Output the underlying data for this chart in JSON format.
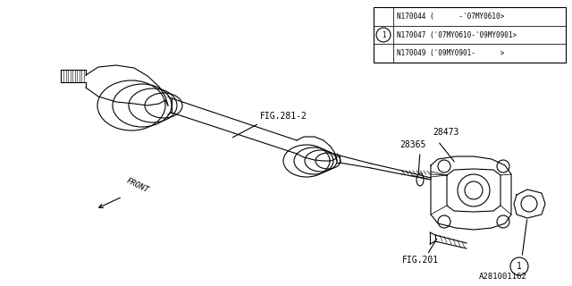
{
  "bg_color": "#ffffff",
  "line_color": "#000000",
  "part_number_label": "A281001162",
  "table_rows": [
    "N170044 (      -'07MY0610>",
    "N170047 ('07MY0610-'09MY0901>",
    "N170049 ('09MY0901-      >"
  ]
}
